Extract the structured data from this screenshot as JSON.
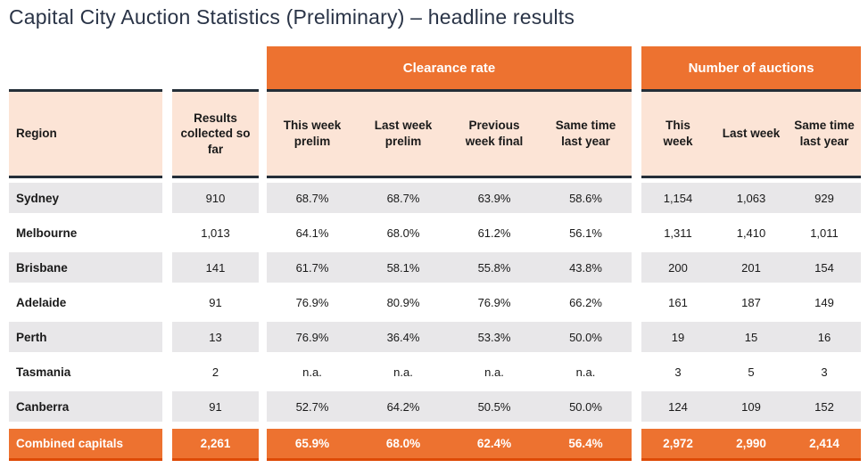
{
  "title": "Capital City Auction Statistics (Preliminary) – headline results",
  "colors": {
    "accent_orange": "#ED7230",
    "header_peach": "#FCE4D6",
    "row_gray": "#E8E7E9",
    "dark_rule": "#242E38",
    "total_row_underline": "#DE4A07",
    "title_navy": "#2A3447"
  },
  "table": {
    "group_headers": {
      "clearance": "Clearance rate",
      "auctions": "Number of auctions"
    },
    "column_headers": {
      "region": "Region",
      "results": "Results\ncollected so\nfar",
      "clearance": [
        "This week\nprelim",
        "Last week\nprelim",
        "Previous\nweek final",
        "Same time\nlast year"
      ],
      "auctions": [
        "This\nweek",
        "Last week",
        "Same time\nlast year"
      ]
    },
    "rows": [
      {
        "region": "Sydney",
        "results": "910",
        "clearance": [
          "68.7%",
          "68.7%",
          "63.9%",
          "58.6%"
        ],
        "auctions": [
          "1,154",
          "1,063",
          "929"
        ]
      },
      {
        "region": "Melbourne",
        "results": "1,013",
        "clearance": [
          "64.1%",
          "68.0%",
          "61.2%",
          "56.1%"
        ],
        "auctions": [
          "1,311",
          "1,410",
          "1,011"
        ]
      },
      {
        "region": "Brisbane",
        "results": "141",
        "clearance": [
          "61.7%",
          "58.1%",
          "55.8%",
          "43.8%"
        ],
        "auctions": [
          "200",
          "201",
          "154"
        ]
      },
      {
        "region": "Adelaide",
        "results": "91",
        "clearance": [
          "76.9%",
          "80.9%",
          "76.9%",
          "66.2%"
        ],
        "auctions": [
          "161",
          "187",
          "149"
        ]
      },
      {
        "region": "Perth",
        "results": "13",
        "clearance": [
          "76.9%",
          "36.4%",
          "53.3%",
          "50.0%"
        ],
        "auctions": [
          "19",
          "15",
          "16"
        ]
      },
      {
        "region": "Tasmania",
        "results": "2",
        "clearance": [
          "n.a.",
          "n.a.",
          "n.a.",
          "n.a."
        ],
        "auctions": [
          "3",
          "5",
          "3"
        ]
      },
      {
        "region": "Canberra",
        "results": "91",
        "clearance": [
          "52.7%",
          "64.2%",
          "50.5%",
          "50.0%"
        ],
        "auctions": [
          "124",
          "109",
          "152"
        ]
      }
    ],
    "total_row": {
      "region": "Combined capitals",
      "results": "2,261",
      "clearance": [
        "65.9%",
        "68.0%",
        "62.4%",
        "56.4%"
      ],
      "auctions": [
        "2,972",
        "2,990",
        "2,414"
      ]
    }
  }
}
